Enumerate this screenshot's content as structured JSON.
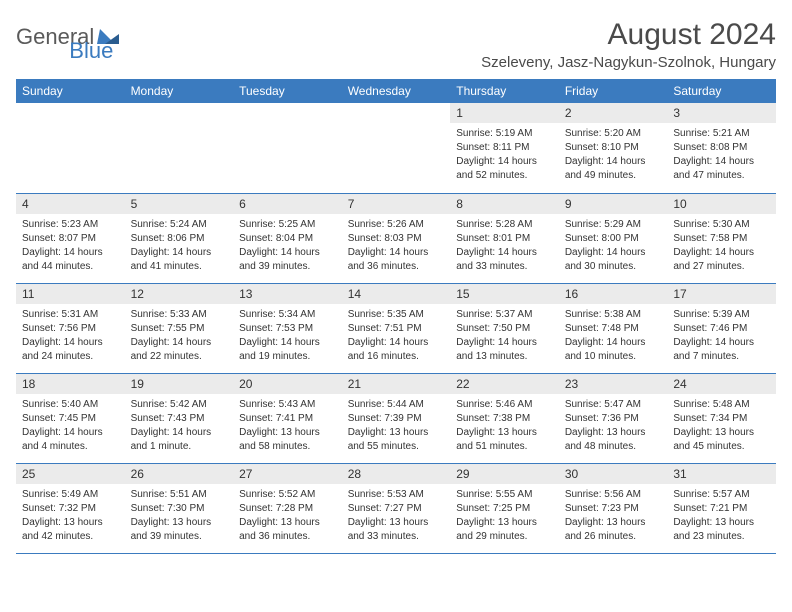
{
  "logo": {
    "text1": "General",
    "text2": "Blue"
  },
  "title": "August 2024",
  "location": "Szeleveny, Jasz-Nagykun-Szolnok, Hungary",
  "colors": {
    "header_bg": "#3b7bbf",
    "header_text": "#ffffff",
    "daynum_bg": "#ebebeb",
    "text": "#333333",
    "logo_gray": "#5a5a5a",
    "logo_blue": "#3b7bbf",
    "border": "#3b7bbf"
  },
  "day_headers": [
    "Sunday",
    "Monday",
    "Tuesday",
    "Wednesday",
    "Thursday",
    "Friday",
    "Saturday"
  ],
  "weeks": [
    [
      null,
      null,
      null,
      null,
      {
        "n": "1",
        "sunrise": "5:19 AM",
        "sunset": "8:11 PM",
        "daylight": "14 hours and 52 minutes."
      },
      {
        "n": "2",
        "sunrise": "5:20 AM",
        "sunset": "8:10 PM",
        "daylight": "14 hours and 49 minutes."
      },
      {
        "n": "3",
        "sunrise": "5:21 AM",
        "sunset": "8:08 PM",
        "daylight": "14 hours and 47 minutes."
      }
    ],
    [
      {
        "n": "4",
        "sunrise": "5:23 AM",
        "sunset": "8:07 PM",
        "daylight": "14 hours and 44 minutes."
      },
      {
        "n": "5",
        "sunrise": "5:24 AM",
        "sunset": "8:06 PM",
        "daylight": "14 hours and 41 minutes."
      },
      {
        "n": "6",
        "sunrise": "5:25 AM",
        "sunset": "8:04 PM",
        "daylight": "14 hours and 39 minutes."
      },
      {
        "n": "7",
        "sunrise": "5:26 AM",
        "sunset": "8:03 PM",
        "daylight": "14 hours and 36 minutes."
      },
      {
        "n": "8",
        "sunrise": "5:28 AM",
        "sunset": "8:01 PM",
        "daylight": "14 hours and 33 minutes."
      },
      {
        "n": "9",
        "sunrise": "5:29 AM",
        "sunset": "8:00 PM",
        "daylight": "14 hours and 30 minutes."
      },
      {
        "n": "10",
        "sunrise": "5:30 AM",
        "sunset": "7:58 PM",
        "daylight": "14 hours and 27 minutes."
      }
    ],
    [
      {
        "n": "11",
        "sunrise": "5:31 AM",
        "sunset": "7:56 PM",
        "daylight": "14 hours and 24 minutes."
      },
      {
        "n": "12",
        "sunrise": "5:33 AM",
        "sunset": "7:55 PM",
        "daylight": "14 hours and 22 minutes."
      },
      {
        "n": "13",
        "sunrise": "5:34 AM",
        "sunset": "7:53 PM",
        "daylight": "14 hours and 19 minutes."
      },
      {
        "n": "14",
        "sunrise": "5:35 AM",
        "sunset": "7:51 PM",
        "daylight": "14 hours and 16 minutes."
      },
      {
        "n": "15",
        "sunrise": "5:37 AM",
        "sunset": "7:50 PM",
        "daylight": "14 hours and 13 minutes."
      },
      {
        "n": "16",
        "sunrise": "5:38 AM",
        "sunset": "7:48 PM",
        "daylight": "14 hours and 10 minutes."
      },
      {
        "n": "17",
        "sunrise": "5:39 AM",
        "sunset": "7:46 PM",
        "daylight": "14 hours and 7 minutes."
      }
    ],
    [
      {
        "n": "18",
        "sunrise": "5:40 AM",
        "sunset": "7:45 PM",
        "daylight": "14 hours and 4 minutes."
      },
      {
        "n": "19",
        "sunrise": "5:42 AM",
        "sunset": "7:43 PM",
        "daylight": "14 hours and 1 minute."
      },
      {
        "n": "20",
        "sunrise": "5:43 AM",
        "sunset": "7:41 PM",
        "daylight": "13 hours and 58 minutes."
      },
      {
        "n": "21",
        "sunrise": "5:44 AM",
        "sunset": "7:39 PM",
        "daylight": "13 hours and 55 minutes."
      },
      {
        "n": "22",
        "sunrise": "5:46 AM",
        "sunset": "7:38 PM",
        "daylight": "13 hours and 51 minutes."
      },
      {
        "n": "23",
        "sunrise": "5:47 AM",
        "sunset": "7:36 PM",
        "daylight": "13 hours and 48 minutes."
      },
      {
        "n": "24",
        "sunrise": "5:48 AM",
        "sunset": "7:34 PM",
        "daylight": "13 hours and 45 minutes."
      }
    ],
    [
      {
        "n": "25",
        "sunrise": "5:49 AM",
        "sunset": "7:32 PM",
        "daylight": "13 hours and 42 minutes."
      },
      {
        "n": "26",
        "sunrise": "5:51 AM",
        "sunset": "7:30 PM",
        "daylight": "13 hours and 39 minutes."
      },
      {
        "n": "27",
        "sunrise": "5:52 AM",
        "sunset": "7:28 PM",
        "daylight": "13 hours and 36 minutes."
      },
      {
        "n": "28",
        "sunrise": "5:53 AM",
        "sunset": "7:27 PM",
        "daylight": "13 hours and 33 minutes."
      },
      {
        "n": "29",
        "sunrise": "5:55 AM",
        "sunset": "7:25 PM",
        "daylight": "13 hours and 29 minutes."
      },
      {
        "n": "30",
        "sunrise": "5:56 AM",
        "sunset": "7:23 PM",
        "daylight": "13 hours and 26 minutes."
      },
      {
        "n": "31",
        "sunrise": "5:57 AM",
        "sunset": "7:21 PM",
        "daylight": "13 hours and 23 minutes."
      }
    ]
  ],
  "labels": {
    "sunrise": "Sunrise:",
    "sunset": "Sunset:",
    "daylight": "Daylight:"
  }
}
